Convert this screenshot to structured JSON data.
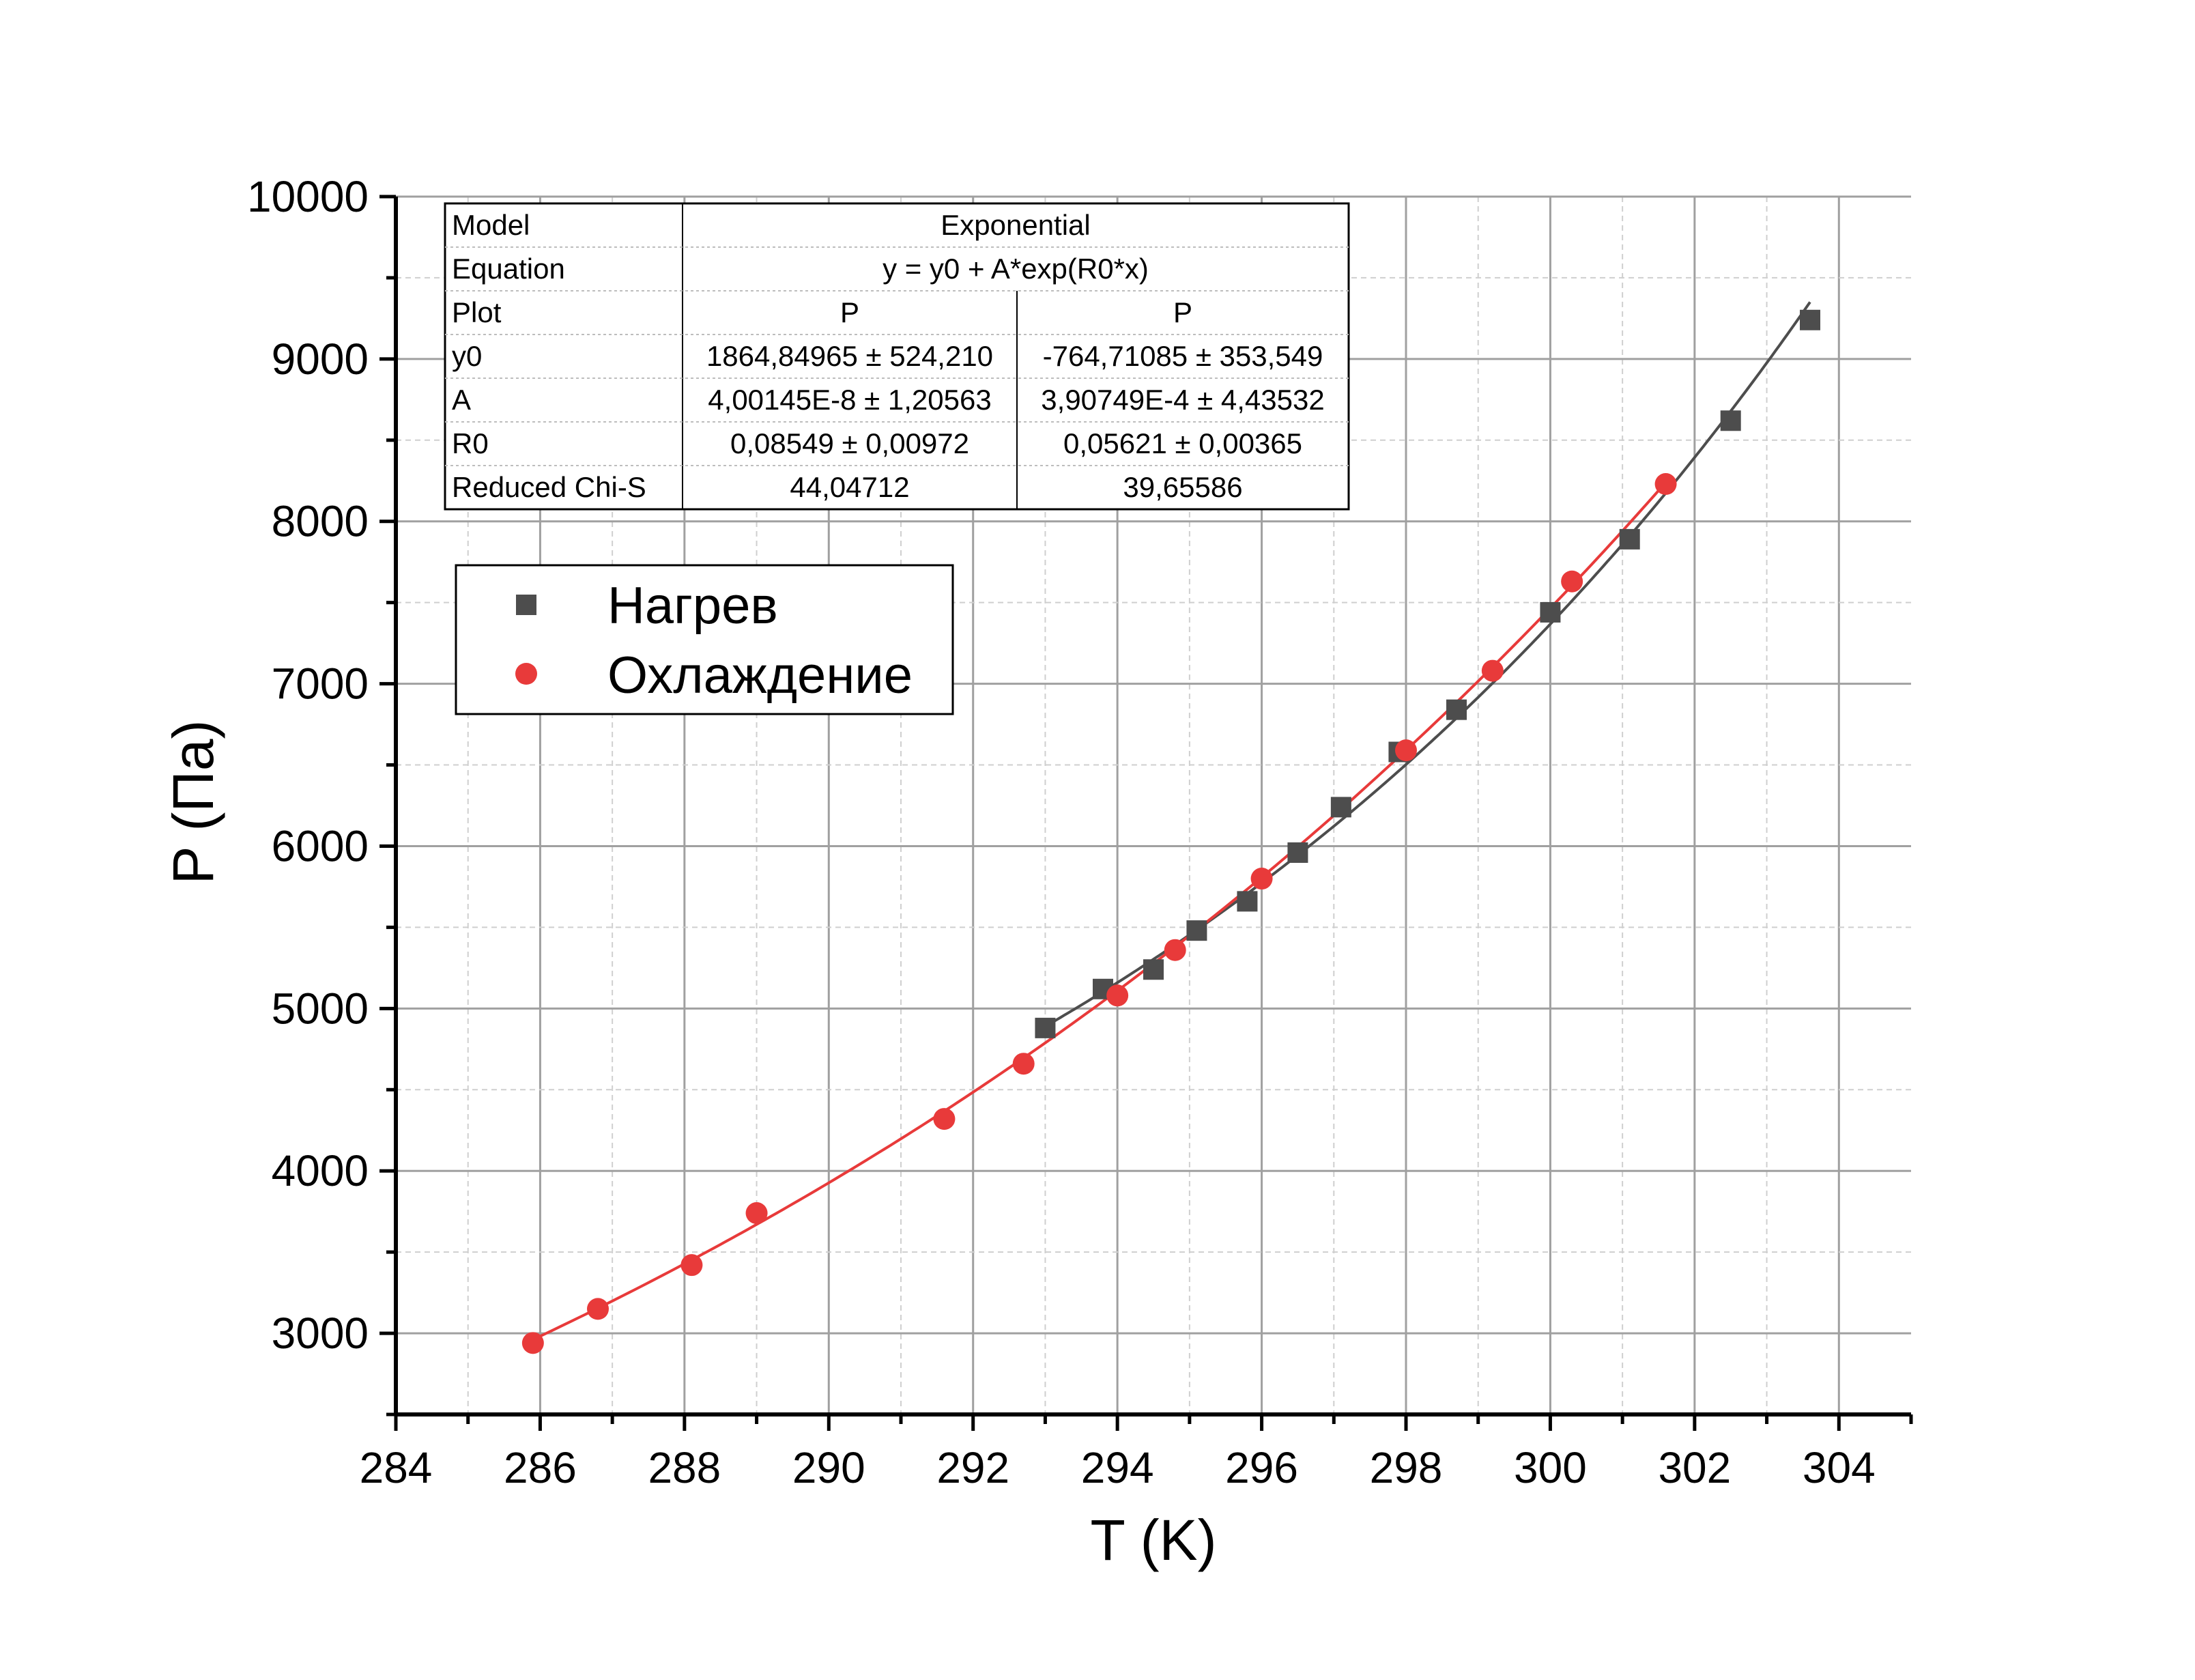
{
  "chart_data": {
    "type": "scatter",
    "xlabel": "T (K)",
    "ylabel": "P (Па)",
    "xlim": [
      284,
      305
    ],
    "ylim": [
      2500,
      10000
    ],
    "x_ticks": [
      284,
      286,
      288,
      290,
      292,
      294,
      296,
      298,
      300,
      302,
      304
    ],
    "y_ticks": [
      3000,
      4000,
      5000,
      6000,
      7000,
      8000,
      9000,
      10000
    ],
    "grid": true,
    "legend": {
      "placement": "top-left"
    },
    "series": [
      {
        "name": "Нагрев",
        "color": "#4d4d4d",
        "marker": "square",
        "x": [
          293.0,
          293.8,
          294.5,
          295.1,
          295.8,
          296.5,
          297.1,
          297.9,
          298.7,
          300.0,
          301.1,
          302.5,
          303.6
        ],
        "y": [
          4880,
          5120,
          5240,
          5480,
          5660,
          5960,
          6240,
          6580,
          6840,
          7440,
          7890,
          8620,
          9240
        ],
        "fit": {
          "y0": 1864.84965,
          "A": 4.00145e-08,
          "R0": 0.08549,
          "x_range": [
            293.0,
            303.6
          ]
        }
      },
      {
        "name": "Охлаждение",
        "color": "#e83a3a",
        "marker": "circle",
        "x": [
          285.9,
          286.8,
          288.1,
          289.0,
          291.6,
          292.7,
          294.0,
          294.8,
          296.0,
          298.0,
          299.2,
          300.3,
          301.6
        ],
        "y": [
          2940,
          3150,
          3420,
          3740,
          4320,
          4660,
          5080,
          5360,
          5800,
          6590,
          7080,
          7630,
          8230
        ],
        "fit": {
          "y0": -764.71085,
          "A": 0.000390749,
          "R0": 0.05621,
          "x_range": [
            285.9,
            301.6
          ]
        }
      }
    ],
    "fit_table": {
      "rows": [
        {
          "label": "Model",
          "merged": "Exponential"
        },
        {
          "label": "Equation",
          "merged": "y = y0 + A*exp(R0*x)"
        },
        {
          "label": "Plot",
          "c1": "P",
          "c2": "P"
        },
        {
          "label": "y0",
          "c1": "1864,84965 ± 524,210",
          "c2": "-764,71085 ± 353,549"
        },
        {
          "label": "A",
          "c1": "4,00145E-8 ± 1,20563",
          "c2": "3,90749E-4 ± 4,43532"
        },
        {
          "label": "R0",
          "c1": "0,08549 ± 0,00972",
          "c2": "0,05621 ± 0,00365"
        },
        {
          "label": "Reduced Chi-S",
          "c1": "44,04712",
          "c2": "39,65586"
        }
      ]
    }
  }
}
